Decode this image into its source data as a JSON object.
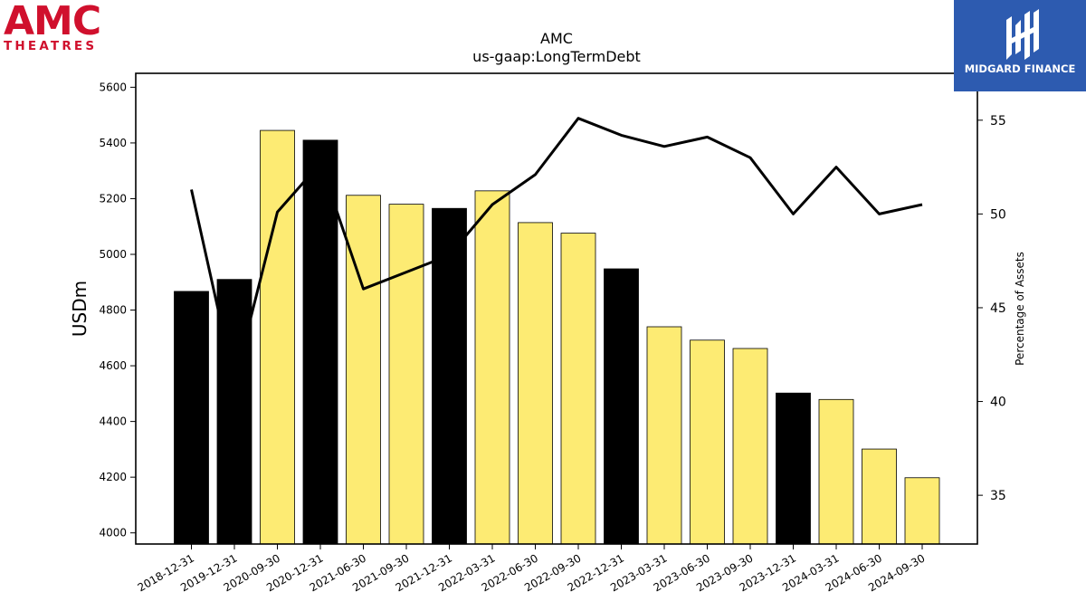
{
  "logos": {
    "amc_word": "AMC",
    "amc_sub": "THEATRES",
    "midgard_name": "MIDGARD FINANCE"
  },
  "colors": {
    "bar_annual": "#000000",
    "bar_quarter": "#fdeb73",
    "line": "#000000",
    "amc_red": "#d0102d",
    "midgard_blue": "#2d5bb0"
  },
  "chart_data": {
    "type": "bar",
    "title": "AMC",
    "subtitle": "us-gaap:LongTermDebt",
    "ylabel": "USDm",
    "y2label": "Percentage of Assets",
    "ylim": [
      3960,
      5650
    ],
    "y2lim": [
      32.4,
      57.5
    ],
    "yticks": [
      4000,
      4200,
      4400,
      4600,
      4800,
      5000,
      5200,
      5400,
      5600
    ],
    "y2ticks": [
      35,
      40,
      45,
      50,
      55
    ],
    "categories": [
      "2018-12-31",
      "2019-12-31",
      "2020-09-30",
      "2020-12-31",
      "2021-06-30",
      "2021-09-30",
      "2021-12-31",
      "2022-03-31",
      "2022-06-30",
      "2022-09-30",
      "2022-12-31",
      "2023-03-31",
      "2023-06-30",
      "2023-09-30",
      "2023-12-31",
      "2024-03-31",
      "2024-06-30",
      "2024-09-30"
    ],
    "series": [
      {
        "type": "bar",
        "values": [
          4867,
          4910,
          5445,
          5410,
          5212,
          5180,
          5165,
          5228,
          5114,
          5076,
          4948,
          4740,
          4692,
          4662,
          4502,
          4479,
          4301,
          4198
        ],
        "annual": [
          true,
          true,
          false,
          true,
          false,
          false,
          true,
          false,
          false,
          false,
          true,
          false,
          false,
          false,
          true,
          false,
          false,
          false
        ]
      },
      {
        "type": "line",
        "axis": "right",
        "values": [
          51.3,
          41.0,
          50.1,
          52.7,
          46.0,
          46.9,
          47.8,
          50.5,
          52.1,
          55.1,
          54.2,
          53.6,
          54.1,
          53.0,
          50.0,
          52.5,
          50.0,
          50.5
        ]
      }
    ]
  }
}
